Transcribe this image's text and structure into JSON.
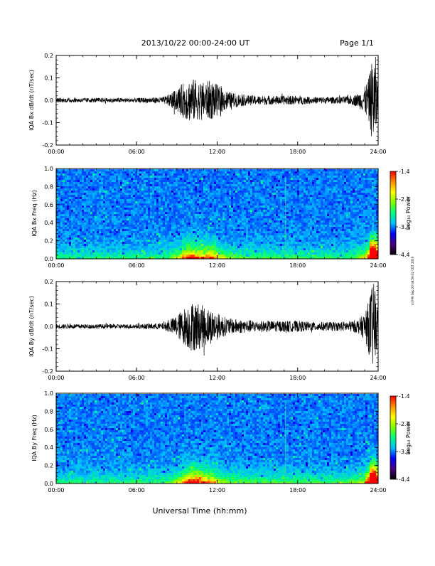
{
  "header": {
    "title": "2013/10/22  00:00-24:00 UT",
    "page": "Page 1/1"
  },
  "x_axis_title": "Universal Time (hh:mm)",
  "stamp": "mf FRI Sep 20 08:59:02 CDT 2019",
  "colorbar": {
    "label": "Log₁₀ Power",
    "ticks": [
      "-1.4",
      "-2.4",
      "-3.4",
      "-4.4"
    ],
    "range": [
      -4.4,
      -1.4
    ],
    "colors": [
      "#000000",
      "#4b0082",
      "#0000ff",
      "#00bfff",
      "#00ff7f",
      "#7fff00",
      "#ffff00",
      "#ff8c00",
      "#ff0000"
    ]
  },
  "chart_data": [
    {
      "type": "line",
      "ylabel": "IQA Bx dB/dt (nT/sec)",
      "xlim": [
        0,
        24
      ],
      "ylim": [
        -0.2,
        0.2
      ],
      "x_ticks": [
        "00:00",
        "06:00",
        "12:00",
        "18:00",
        "24:00"
      ],
      "y_ticks": [
        "0.2",
        "0.1",
        "0.0",
        "-0.1",
        "-0.2"
      ],
      "envelope": {
        "x": [
          0,
          2,
          4,
          6,
          8,
          8.5,
          9,
          9.5,
          10,
          10.5,
          11,
          11.5,
          12,
          12.5,
          13,
          14,
          15,
          16,
          17,
          18,
          19,
          20,
          21,
          22,
          22.5,
          23,
          23.3,
          23.6,
          23.8,
          24
        ],
        "amp": [
          0.01,
          0.01,
          0.01,
          0.01,
          0.015,
          0.03,
          0.05,
          0.08,
          0.1,
          0.09,
          0.08,
          0.09,
          0.07,
          0.05,
          0.035,
          0.025,
          0.02,
          0.02,
          0.02,
          0.02,
          0.015,
          0.015,
          0.015,
          0.02,
          0.03,
          0.06,
          0.1,
          0.2,
          0.2,
          0.05
        ]
      }
    },
    {
      "type": "heatmap",
      "ylabel": "IQA Bx Freq (Hz)",
      "xlim": [
        0,
        24
      ],
      "ylim": [
        0.0,
        1.0
      ],
      "x_ticks": [
        "00:00",
        "06:00",
        "12:00",
        "18:00",
        "24:00"
      ],
      "y_ticks": [
        "1.0",
        "0.8",
        "0.6",
        "0.4",
        "0.2",
        "0.0"
      ],
      "vertical_line_hour": 17.1
    },
    {
      "type": "line",
      "ylabel": "IQA By dB/dt (nT/sec)",
      "xlim": [
        0,
        24
      ],
      "ylim": [
        -0.2,
        0.2
      ],
      "x_ticks": [
        "00:00",
        "06:00",
        "12:00",
        "18:00",
        "24:00"
      ],
      "y_ticks": [
        "0.2",
        "0.1",
        "0.0",
        "-0.1",
        "-0.2"
      ],
      "envelope": {
        "x": [
          0,
          2,
          4,
          6,
          8,
          8.5,
          9,
          9.5,
          10,
          10.5,
          11,
          11.5,
          12,
          12.5,
          13,
          14,
          15,
          16,
          17,
          18,
          19,
          20,
          21,
          22,
          22.5,
          23,
          23.3,
          23.6,
          23.8,
          24
        ],
        "amp": [
          0.01,
          0.01,
          0.01,
          0.01,
          0.015,
          0.03,
          0.05,
          0.08,
          0.11,
          0.11,
          0.09,
          0.08,
          0.06,
          0.045,
          0.035,
          0.03,
          0.025,
          0.025,
          0.025,
          0.025,
          0.02,
          0.02,
          0.02,
          0.025,
          0.03,
          0.06,
          0.12,
          0.2,
          0.18,
          0.05
        ]
      }
    },
    {
      "type": "heatmap",
      "ylabel": "IQA By Freq (Hz)",
      "xlim": [
        0,
        24
      ],
      "ylim": [
        0.0,
        1.0
      ],
      "x_ticks": [
        "00:00",
        "06:00",
        "12:00",
        "18:00",
        "24:00"
      ],
      "y_ticks": [
        "1.0",
        "0.8",
        "0.6",
        "0.4",
        "0.2",
        "0.0"
      ],
      "vertical_line_hour": 17.1
    }
  ]
}
